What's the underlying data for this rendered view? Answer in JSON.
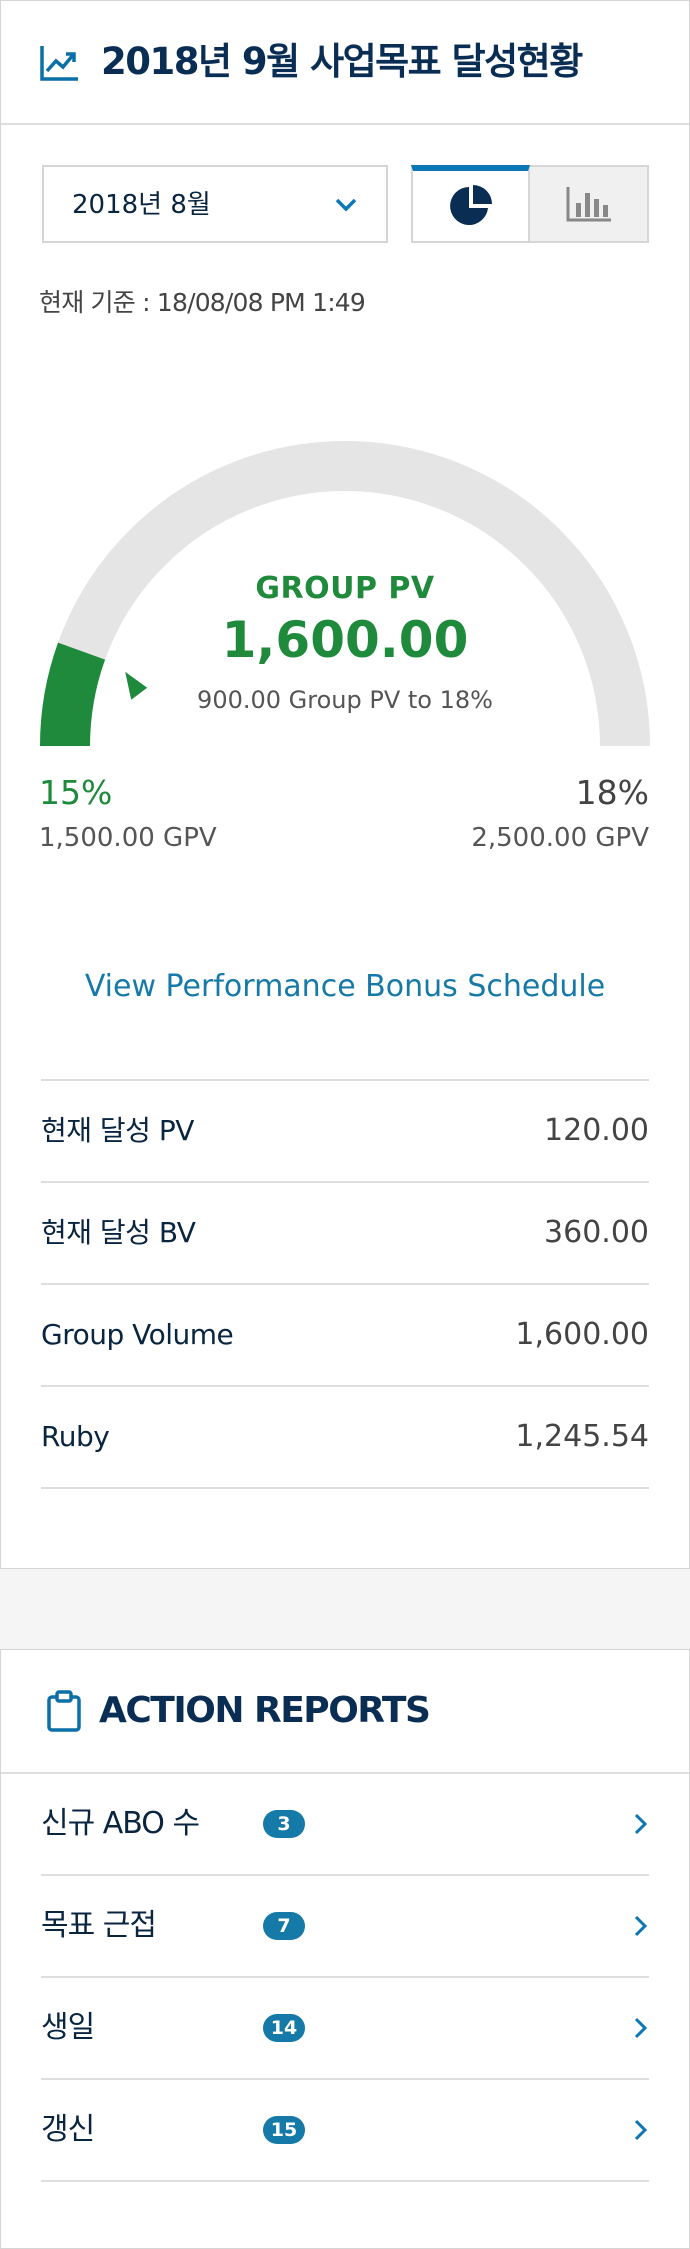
{
  "header": {
    "title": "2018년 9월 사업목표 달성현황",
    "icon": "trending-up-icon"
  },
  "filters": {
    "month": "2018년 8월",
    "view_toggle": [
      {
        "name": "pie-chart-icon",
        "active": true
      },
      {
        "name": "bar-chart-icon",
        "active": false
      }
    ]
  },
  "as_of": "현재 기준 : 18/08/08 PM 1:49",
  "gauge": {
    "title": "GROUP PV",
    "value": "1,600.00",
    "subtitle": "900.00 Group PV to 18%",
    "fill_fraction": 0.11,
    "left": {
      "pct": "15%",
      "gpv": "1,500.00 GPV"
    },
    "right": {
      "pct": "18%",
      "gpv": "2,500.00 GPV"
    },
    "colors": {
      "fill": "#1f8a3c",
      "track": "#e5e5e5"
    }
  },
  "bonus_link": "View Performance Bonus Schedule",
  "stats": [
    {
      "label": "현재 달성 PV",
      "value": "120.00"
    },
    {
      "label": "현재 달성 BV",
      "value": "360.00"
    },
    {
      "label": "Group Volume",
      "value": "1,600.00"
    },
    {
      "label": "Ruby",
      "value": "1,245.54"
    }
  ],
  "action_reports": {
    "title": "ACTION REPORTS",
    "icon": "clipboard-icon",
    "items": [
      {
        "label": "신규 ABO 수",
        "count": "3"
      },
      {
        "label": "목표 근접",
        "count": "7"
      },
      {
        "label": "생일",
        "count": "14"
      },
      {
        "label": "갱신",
        "count": "15"
      }
    ]
  },
  "colors": {
    "brand": "#0a2d54",
    "accent": "#167aa8",
    "success": "#1f8a3c"
  }
}
